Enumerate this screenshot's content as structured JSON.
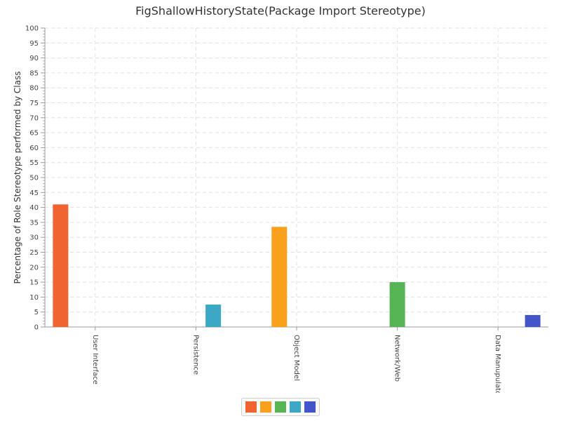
{
  "chart_data": {
    "type": "bar",
    "title": "FigShallowHistoryState(Package Import Stereotype)",
    "xlabel": "",
    "ylabel": "Percentage of Role Stereotype performed by Class",
    "ylim": [
      0,
      100
    ],
    "y_major_step": 5,
    "grid": true,
    "legend_position": "bottom-center",
    "categories": [
      "User Interface",
      "Persistence",
      "Object Model",
      "Network/Web",
      "Data Manupulator"
    ],
    "series": [
      {
        "values": [
          41,
          null,
          null,
          null,
          null
        ],
        "color": "#f06432"
      },
      {
        "values": [
          null,
          null,
          33.5,
          null,
          null
        ],
        "color": "#f9a11b"
      },
      {
        "values": [
          null,
          null,
          null,
          15,
          null
        ],
        "color": "#56b454"
      },
      {
        "values": [
          null,
          7.5,
          null,
          null,
          null
        ],
        "color": "#3da7c6"
      },
      {
        "values": [
          null,
          null,
          null,
          null,
          4
        ],
        "color": "#4356c9"
      }
    ]
  }
}
